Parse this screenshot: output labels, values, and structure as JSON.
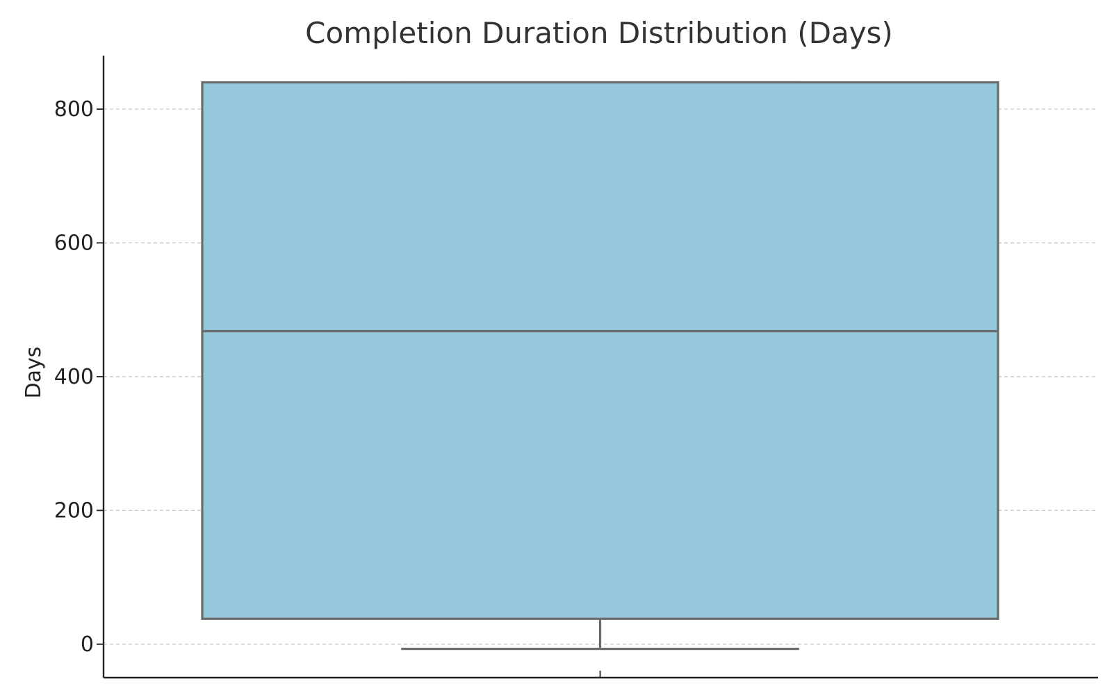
{
  "chart_data": {
    "type": "box",
    "title": "Completion Duration Distribution (Days)",
    "xlabel": "",
    "ylabel": "Days",
    "ylim": [
      -50,
      880
    ],
    "yticks": [
      0,
      200,
      400,
      600,
      800
    ],
    "y_tick_labels": [
      "0",
      "200",
      "400",
      "600",
      "800"
    ],
    "grid": true,
    "box": {
      "whisker_low": -7,
      "q1": 38,
      "median": 468,
      "q3": 840,
      "whisker_high": 840
    },
    "colors": {
      "box_fill": "#96c8dd",
      "box_edge": "#6b6b6b",
      "title": "#333333"
    }
  }
}
